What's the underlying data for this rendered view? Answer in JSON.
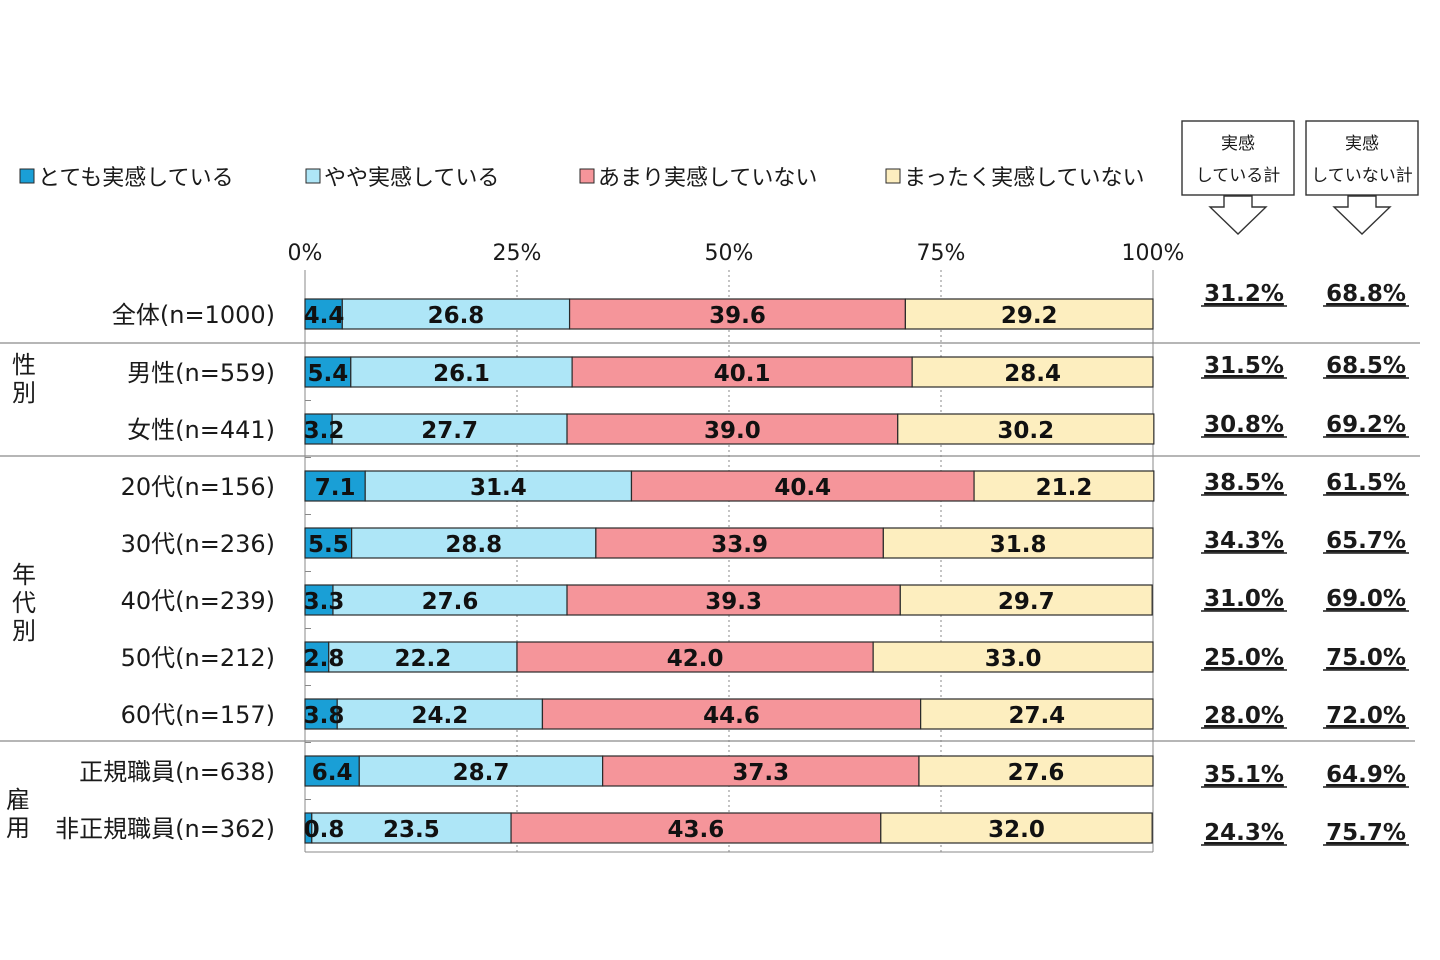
{
  "colors": {
    "series": [
      "#1a9fd6",
      "#aee6f7",
      "#f5959a",
      "#fdeebf"
    ],
    "border": "#2a2a2a"
  },
  "chart_data": {
    "type": "bar",
    "orientation": "horizontal",
    "stacked": true,
    "normalized": true,
    "xlim": [
      0,
      100
    ],
    "xticks": [
      "0%",
      "25%",
      "50%",
      "75%",
      "100%"
    ],
    "grid": "vertical dotted",
    "legend_position": "top",
    "series": [
      {
        "name": "とても実感している",
        "values": [
          4.4,
          5.4,
          3.2,
          7.1,
          5.5,
          3.3,
          2.8,
          3.8,
          6.4,
          0.8
        ]
      },
      {
        "name": "やや実感している",
        "values": [
          26.8,
          26.1,
          27.7,
          31.4,
          28.8,
          27.6,
          22.2,
          24.2,
          28.7,
          23.5
        ]
      },
      {
        "name": "あまり実感していない",
        "values": [
          39.6,
          40.1,
          39.0,
          40.4,
          33.9,
          39.3,
          42.0,
          44.6,
          37.3,
          43.6
        ]
      },
      {
        "name": "まったく実感していない",
        "values": [
          29.2,
          28.4,
          30.2,
          21.2,
          31.8,
          29.7,
          33.0,
          27.4,
          27.6,
          32.0
        ]
      }
    ],
    "categories": [
      "全体(n=1000)",
      "男性(n=559)",
      "女性(n=441)",
      "20代(n=156)",
      "30代(n=236)",
      "40代(n=239)",
      "50代(n=212)",
      "60代(n=157)",
      "正規職員(n=638)",
      "非正規職員(n=362)"
    ],
    "groups": [
      {
        "label": "性別",
        "chars": [
          "性",
          "別"
        ]
      },
      {
        "label": "年代別",
        "chars": [
          "年",
          "代",
          "別"
        ]
      },
      {
        "label": "雇用",
        "chars": [
          "雇",
          "用"
        ]
      }
    ],
    "totals": {
      "headers": [
        {
          "line1": "実感",
          "line2": "している計"
        },
        {
          "line1": "実感",
          "line2": "していない計"
        }
      ],
      "jikkan_shiteiru": [
        "31.2%",
        "31.5%",
        "30.8%",
        "38.5%",
        "34.3%",
        "31.0%",
        "25.0%",
        "28.0%",
        "35.1%",
        "24.3%"
      ],
      "jikkan_shiteinai": [
        "68.8%",
        "68.5%",
        "69.2%",
        "61.5%",
        "65.7%",
        "69.0%",
        "75.0%",
        "72.0%",
        "64.9%",
        "75.7%"
      ]
    }
  }
}
